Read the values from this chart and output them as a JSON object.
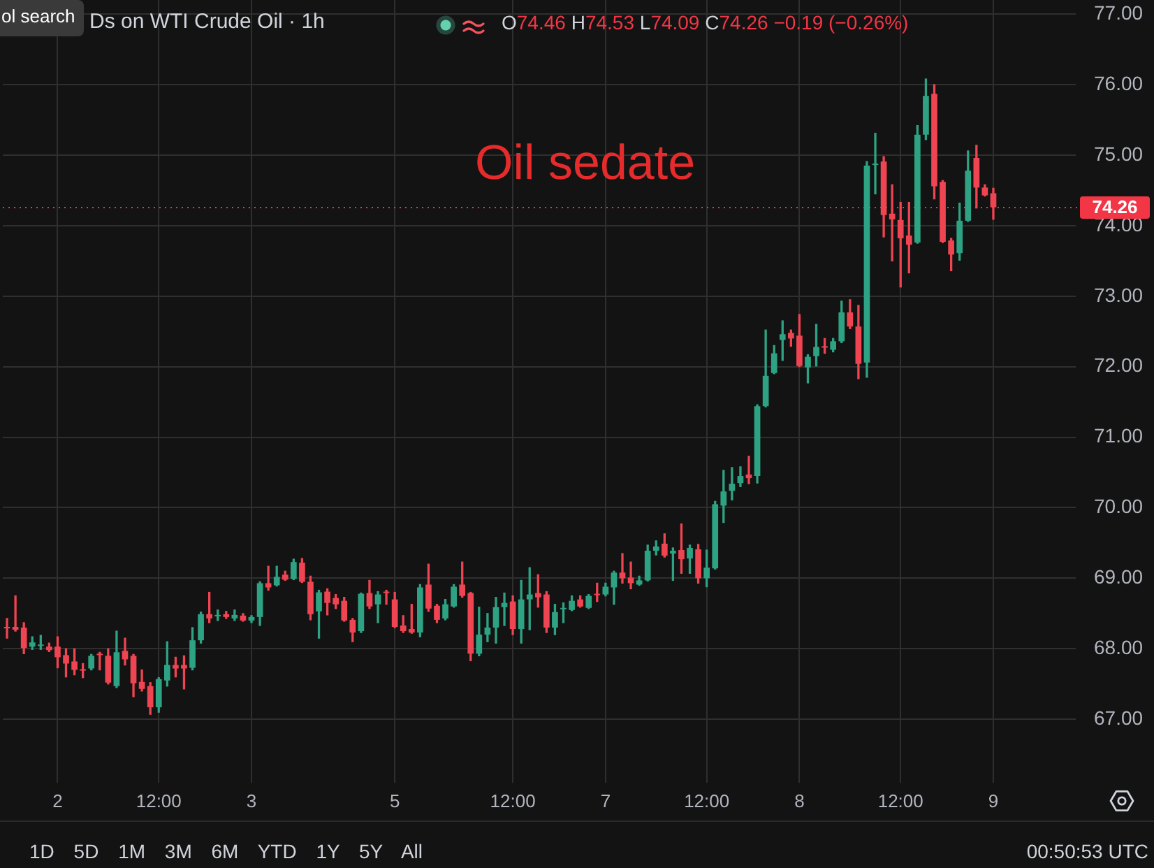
{
  "chart_data": {
    "type": "candlestick",
    "title": "Ds on WTI Crude Oil · 1h",
    "subtitle": "O74.46 H74.53 L74.09 C74.26 −0.19 (−0.26%)",
    "annotations": [
      "Oil sedate",
      "ol search",
      "1D 5D 1M 3M 6M YTD 1Y 5Y All",
      "00:50:53 UTC"
    ],
    "categories": [
      null,
      null,
      null,
      null,
      null,
      null,
      "2",
      null,
      null,
      null,
      null,
      null,
      null,
      null,
      null,
      null,
      null,
      null,
      "12:00",
      null,
      null,
      null,
      null,
      null,
      null,
      null,
      null,
      null,
      null,
      "3",
      null,
      null,
      null,
      null,
      null,
      null,
      null,
      null,
      null,
      null,
      null,
      null,
      null,
      null,
      null,
      null,
      "5",
      null,
      null,
      null,
      null,
      null,
      null,
      null,
      null,
      null,
      null,
      null,
      null,
      null,
      "12:00",
      null,
      null,
      null,
      null,
      null,
      null,
      null,
      null,
      null,
      null,
      "7",
      null,
      null,
      null,
      null,
      null,
      null,
      null,
      null,
      null,
      null,
      null,
      "12:00",
      null,
      null,
      null,
      null,
      null,
      null,
      null,
      null,
      null,
      null,
      "8",
      null,
      null,
      null,
      null,
      null,
      null,
      null,
      null,
      null,
      null,
      null,
      "12:00",
      null,
      null,
      null,
      null,
      null,
      null,
      null,
      null,
      null,
      null,
      "9"
    ],
    "ohlc": [
      [
        68.3,
        68.43,
        68.15,
        68.29
      ],
      [
        68.31,
        68.75,
        68.25,
        68.27
      ],
      [
        68.3,
        68.37,
        67.93,
        68.01
      ],
      [
        68.03,
        68.17,
        67.99,
        68.09
      ],
      [
        68.04,
        68.19,
        67.99,
        68.05
      ],
      [
        68.03,
        68.08,
        67.96,
        67.98
      ],
      [
        68.03,
        68.17,
        67.73,
        67.88
      ],
      [
        67.91,
        68.0,
        67.6,
        67.79
      ],
      [
        67.82,
        68.0,
        67.63,
        67.7
      ],
      [
        67.71,
        67.79,
        67.59,
        67.69
      ],
      [
        67.72,
        67.92,
        67.7,
        67.9
      ],
      [
        67.92,
        67.95,
        67.7,
        67.91
      ],
      [
        67.9,
        68.0,
        67.5,
        67.52
      ],
      [
        67.47,
        68.25,
        67.45,
        67.95
      ],
      [
        67.97,
        68.15,
        67.77,
        67.85
      ],
      [
        67.9,
        67.92,
        67.32,
        67.51
      ],
      [
        67.53,
        67.7,
        67.4,
        67.43
      ],
      [
        67.47,
        67.52,
        67.07,
        67.17
      ],
      [
        67.17,
        67.59,
        67.1,
        67.57
      ],
      [
        67.55,
        68.1,
        67.47,
        67.77
      ],
      [
        67.77,
        67.88,
        67.6,
        67.72
      ],
      [
        67.77,
        67.9,
        67.43,
        67.72
      ],
      [
        67.73,
        68.3,
        67.7,
        68.12
      ],
      [
        68.12,
        68.52,
        68.08,
        68.49
      ],
      [
        68.49,
        68.8,
        68.37,
        68.43
      ],
      [
        68.46,
        68.55,
        68.4,
        68.47
      ],
      [
        68.49,
        68.53,
        68.43,
        68.45
      ],
      [
        68.43,
        68.55,
        68.4,
        68.48
      ],
      [
        68.47,
        68.5,
        68.39,
        68.4
      ],
      [
        68.4,
        68.47,
        68.37,
        68.45
      ],
      [
        68.45,
        68.95,
        68.33,
        68.93
      ],
      [
        68.93,
        69.17,
        68.83,
        68.87
      ],
      [
        68.9,
        69.17,
        68.89,
        69.02
      ],
      [
        69.05,
        69.1,
        68.97,
        68.98
      ],
      [
        68.99,
        69.27,
        68.98,
        69.23
      ],
      [
        69.22,
        69.28,
        68.94,
        68.95
      ],
      [
        68.95,
        69.03,
        68.41,
        68.49
      ],
      [
        68.53,
        68.83,
        68.15,
        68.8
      ],
      [
        68.81,
        68.85,
        68.48,
        68.65
      ],
      [
        68.72,
        68.77,
        68.57,
        68.63
      ],
      [
        68.68,
        68.73,
        68.39,
        68.4
      ],
      [
        68.41,
        68.43,
        68.1,
        68.23
      ],
      [
        68.25,
        68.79,
        68.23,
        68.78
      ],
      [
        68.79,
        68.97,
        68.57,
        68.6
      ],
      [
        68.63,
        68.81,
        68.37,
        68.77
      ],
      [
        68.8,
        68.83,
        68.63,
        68.79
      ],
      [
        68.7,
        68.8,
        68.3,
        68.31
      ],
      [
        68.33,
        68.47,
        68.23,
        68.25
      ],
      [
        68.28,
        68.63,
        68.22,
        68.23
      ],
      [
        68.23,
        68.91,
        68.17,
        68.87
      ],
      [
        68.91,
        69.2,
        68.53,
        68.57
      ],
      [
        68.61,
        68.63,
        68.37,
        68.41
      ],
      [
        68.43,
        68.7,
        68.41,
        68.63
      ],
      [
        68.6,
        68.91,
        68.59,
        68.88
      ],
      [
        68.91,
        69.23,
        68.73,
        68.75
      ],
      [
        68.79,
        68.8,
        67.83,
        67.93
      ],
      [
        67.93,
        68.59,
        67.9,
        68.2
      ],
      [
        68.2,
        68.5,
        68.1,
        68.3
      ],
      [
        68.3,
        68.73,
        68.08,
        68.59
      ],
      [
        68.59,
        68.79,
        68.33,
        68.65
      ],
      [
        68.67,
        68.75,
        68.2,
        68.28
      ],
      [
        68.28,
        68.97,
        68.08,
        68.7
      ],
      [
        68.7,
        69.15,
        68.27,
        68.77
      ],
      [
        68.79,
        69.05,
        68.59,
        68.73
      ],
      [
        68.77,
        68.81,
        68.23,
        68.3
      ],
      [
        68.3,
        68.63,
        68.2,
        68.52
      ],
      [
        68.56,
        68.65,
        68.37,
        68.57
      ],
      [
        68.55,
        68.75,
        68.54,
        68.68
      ],
      [
        68.7,
        68.75,
        68.59,
        68.6
      ],
      [
        68.58,
        68.77,
        68.57,
        68.75
      ],
      [
        68.77,
        68.93,
        68.67,
        68.76
      ],
      [
        68.77,
        68.93,
        68.75,
        68.88
      ],
      [
        68.87,
        69.1,
        68.63,
        69.08
      ],
      [
        69.08,
        69.35,
        68.93,
        69.0
      ],
      [
        69.01,
        69.23,
        68.85,
        68.93
      ],
      [
        68.91,
        69.03,
        68.9,
        68.97
      ],
      [
        68.97,
        69.47,
        68.96,
        69.39
      ],
      [
        69.39,
        69.53,
        69.33,
        69.45
      ],
      [
        69.49,
        69.63,
        69.3,
        69.32
      ],
      [
        69.35,
        69.43,
        68.97,
        69.39
      ],
      [
        69.4,
        69.77,
        69.07,
        69.27
      ],
      [
        69.28,
        69.47,
        69.07,
        69.43
      ],
      [
        69.41,
        69.48,
        68.93,
        69.0
      ],
      [
        69.0,
        69.4,
        68.88,
        69.15
      ],
      [
        69.14,
        70.09,
        69.13,
        70.05
      ],
      [
        70.03,
        70.53,
        69.79,
        70.23
      ],
      [
        70.24,
        70.57,
        70.11,
        70.34
      ],
      [
        70.35,
        70.58,
        70.3,
        70.45
      ],
      [
        70.47,
        70.73,
        70.34,
        70.42
      ],
      [
        70.45,
        71.46,
        70.35,
        71.44
      ],
      [
        71.44,
        72.52,
        71.43,
        71.87
      ],
      [
        71.91,
        72.3,
        71.9,
        72.19
      ],
      [
        72.38,
        72.65,
        72.09,
        72.46
      ],
      [
        72.48,
        72.52,
        72.29,
        72.4
      ],
      [
        72.44,
        72.74,
        72.0,
        72.01
      ],
      [
        71.99,
        72.17,
        71.77,
        72.14
      ],
      [
        72.15,
        72.6,
        72.01,
        72.28
      ],
      [
        72.28,
        72.4,
        72.19,
        72.27
      ],
      [
        72.24,
        72.4,
        72.21,
        72.36
      ],
      [
        72.36,
        72.93,
        72.34,
        72.77
      ],
      [
        72.77,
        72.95,
        72.54,
        72.57
      ],
      [
        72.57,
        72.87,
        71.83,
        72.04
      ],
      [
        72.06,
        74.91,
        71.85,
        74.85
      ],
      [
        74.86,
        75.31,
        74.45,
        74.88
      ],
      [
        74.91,
        74.98,
        73.84,
        74.15
      ],
      [
        74.17,
        74.58,
        73.5,
        74.09
      ],
      [
        74.08,
        74.33,
        73.13,
        73.82
      ],
      [
        73.86,
        74.33,
        73.33,
        73.73
      ],
      [
        73.76,
        75.42,
        73.75,
        75.29
      ],
      [
        75.29,
        76.08,
        75.22,
        75.84
      ],
      [
        75.87,
        76.0,
        74.38,
        74.56
      ],
      [
        74.62,
        74.64,
        73.76,
        73.77
      ],
      [
        73.79,
        73.82,
        73.36,
        73.59
      ],
      [
        73.61,
        74.32,
        73.51,
        74.07
      ],
      [
        74.07,
        75.06,
        74.06,
        74.78
      ],
      [
        74.96,
        75.14,
        74.25,
        74.54
      ],
      [
        74.54,
        74.58,
        74.42,
        74.43
      ],
      [
        74.46,
        74.53,
        74.09,
        74.26
      ]
    ],
    "colors": [
      "#ef4451",
      "#ef4451",
      "#ef4451",
      "#2ea383",
      "#2ea383",
      "#ef4451",
      "#ef4451",
      "#ef4451",
      "#ef4451",
      "#ef4451",
      "#2ea383",
      "#ef4451",
      "#ef4451",
      "#2ea383",
      "#ef4451",
      "#ef4451",
      "#ef4451",
      "#ef4451",
      "#2ea383",
      "#2ea383",
      "#ef4451",
      "#ef4451",
      "#2ea383",
      "#2ea383",
      "#ef4451",
      "#2ea383",
      "#ef4451",
      "#2ea383",
      "#ef4451",
      "#2ea383",
      "#2ea383",
      "#ef4451",
      "#2ea383",
      "#ef4451",
      "#2ea383",
      "#ef4451",
      "#ef4451",
      "#2ea383",
      "#ef4451",
      "#ef4451",
      "#ef4451",
      "#ef4451",
      "#2ea383",
      "#ef4451",
      "#2ea383",
      "#ef4451",
      "#ef4451",
      "#ef4451",
      "#ef4451",
      "#2ea383",
      "#ef4451",
      "#ef4451",
      "#2ea383",
      "#2ea383",
      "#ef4451",
      "#ef4451",
      "#2ea383",
      "#2ea383",
      "#2ea383",
      "#2ea383",
      "#ef4451",
      "#2ea383",
      "#2ea383",
      "#ef4451",
      "#ef4451",
      "#2ea383",
      "#2ea383",
      "#2ea383",
      "#ef4451",
      "#2ea383",
      "#ef4451",
      "#2ea383",
      "#2ea383",
      "#ef4451",
      "#ef4451",
      "#2ea383",
      "#2ea383",
      "#2ea383",
      "#ef4451",
      "#2ea383",
      "#ef4451",
      "#2ea383",
      "#ef4451",
      "#2ea383",
      "#2ea383",
      "#2ea383",
      "#2ea383",
      "#2ea383",
      "#ef4451",
      "#2ea383",
      "#2ea383",
      "#2ea383",
      "#2ea383",
      "#ef4451",
      "#ef4451",
      "#2ea383",
      "#2ea383",
      "#ef4451",
      "#2ea383",
      "#2ea383",
      "#ef4451",
      "#ef4451",
      "#2ea383",
      "#2ea383",
      "#ef4451",
      "#ef4451",
      "#ef4451",
      "#ef4451",
      "#2ea383",
      "#2ea383",
      "#ef4451",
      "#ef4451",
      "#ef4451",
      "#2ea383",
      "#2ea383",
      "#ef4451",
      "#ef4451",
      "#ef4451"
    ],
    "ylim": [
      66.1,
      77.2
    ],
    "yticks": [
      {
        "value": 67,
        "label": "67.00"
      },
      {
        "value": 68,
        "label": "68.00"
      },
      {
        "value": 69,
        "label": "69.00"
      },
      {
        "value": 70,
        "label": "70.00"
      },
      {
        "value": 71,
        "label": "71.00"
      },
      {
        "value": 72,
        "label": "72.00"
      },
      {
        "value": 73,
        "label": "73.00"
      },
      {
        "value": 74,
        "label": "74.00"
      },
      {
        "value": 75,
        "label": "75.00"
      },
      {
        "value": 76,
        "label": "76.00"
      },
      {
        "value": 77,
        "label": "77.00"
      }
    ],
    "ref_lines": [
      {
        "axis": "y",
        "value": 74.26,
        "label": "74.26",
        "color": "#f23645",
        "line_style": "dotted"
      }
    ],
    "grid": true,
    "legend": false
  }
}
